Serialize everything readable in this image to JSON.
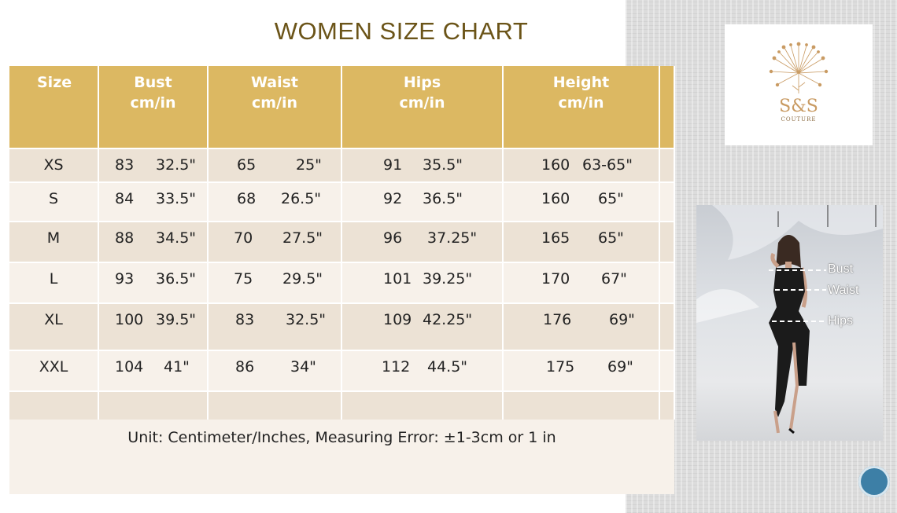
{
  "title": "WOMEN SIZE CHART",
  "columns": {
    "size": "Size",
    "bust": [
      "Bust",
      "cm/in"
    ],
    "waist": [
      "Waist",
      "cm/in"
    ],
    "hips": [
      "Hips",
      "cm/in"
    ],
    "height": [
      "Height",
      "cm/in"
    ]
  },
  "rows": [
    {
      "size": "XS",
      "bust_cm": "83",
      "bust_in": "32.5\"",
      "waist_cm": "65",
      "waist_in": "25\"",
      "hips_cm": "91",
      "hips_in": "35.5\"",
      "height_cm": "160",
      "height_in": "63-65\""
    },
    {
      "size": "S",
      "bust_cm": "84",
      "bust_in": "33.5\"",
      "waist_cm": "68",
      "waist_in": "26.5\"",
      "hips_cm": "92",
      "hips_in": "36.5\"",
      "height_cm": "160",
      "height_in": "65\""
    },
    {
      "size": "M",
      "bust_cm": "88",
      "bust_in": "34.5\"",
      "waist_cm": "70",
      "waist_in": "27.5\"",
      "hips_cm": "96",
      "hips_in": "37.25\"",
      "height_cm": "165",
      "height_in": "65\""
    },
    {
      "size": "L",
      "bust_cm": "93",
      "bust_in": "36.5\"",
      "waist_cm": "75",
      "waist_in": "29.5\"",
      "hips_cm": "101",
      "hips_in": "39.25\"",
      "height_cm": "170",
      "height_in": "67\""
    },
    {
      "size": "XL",
      "bust_cm": "100",
      "bust_in": "39.5\"",
      "waist_cm": "83",
      "waist_in": "32.5\"",
      "hips_cm": "109",
      "hips_in": "42.25\"",
      "height_cm": "176",
      "height_in": "69\""
    },
    {
      "size": "XXL",
      "bust_cm": "104",
      "bust_in": "41\"",
      "waist_cm": "86",
      "waist_in": "34\"",
      "hips_cm": "112",
      "hips_in": "44.5\"",
      "height_cm": "175",
      "height_in": "69\""
    }
  ],
  "footer": "Unit: Centimeter/Inches, Measuring Error: ±1-3cm or 1 in",
  "logo": {
    "text": "S&S",
    "subtext": "COUTURE"
  },
  "photo_labels": {
    "bust": "Bust",
    "waist": "Waist",
    "hips": "Hips"
  },
  "colors": {
    "header": "#dcb862",
    "title": "#6b5418",
    "row_alt": "#ece2d5",
    "row_base": "#f7f1ea",
    "logo_gold": "#c99b63"
  },
  "icons": {
    "logo": "dandelion-logo-icon",
    "nav": "slide-nav-button"
  }
}
